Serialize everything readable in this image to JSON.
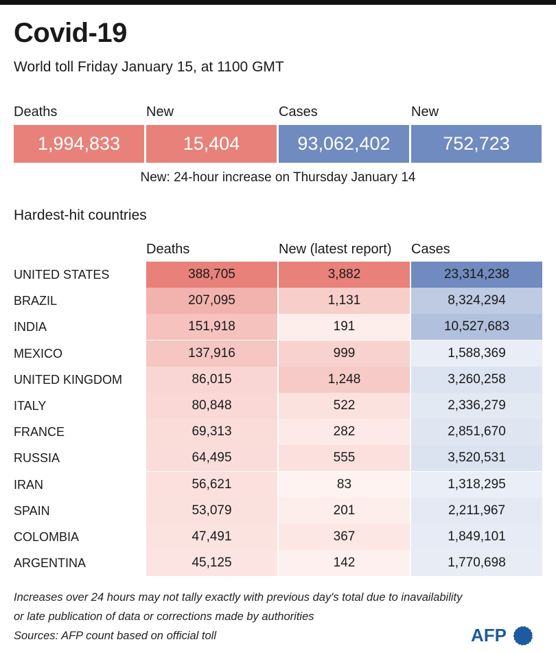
{
  "header": {
    "title": "Covid-19",
    "subtitle": "World toll Friday January 15, at 1100 GMT"
  },
  "summary": {
    "items": [
      {
        "label": "Deaths",
        "value": "1,994,833",
        "color": "#e8817a"
      },
      {
        "label": "New",
        "value": "15,404",
        "color": "#e8817a"
      },
      {
        "label": "Cases",
        "value": "93,062,402",
        "color": "#6f8bbf"
      },
      {
        "label": "New",
        "value": "752,723",
        "color": "#6f8bbf"
      }
    ],
    "note": "New: 24-hour increase on Thursday January 14"
  },
  "section_title": "Hardest-hit countries",
  "colors": {
    "red_max": "#e8817a",
    "red_min": "#fff7f5",
    "blue_max": "#6f8bbf",
    "blue_min": "#f6f8fc"
  },
  "chart_data": {
    "type": "table",
    "columns": [
      "Deaths",
      "New (latest report)",
      "Cases"
    ],
    "rows": [
      {
        "country": "UNITED STATES",
        "deaths": "388,705",
        "new": "3,882",
        "cases": "23,314,238"
      },
      {
        "country": "BRAZIL",
        "deaths": "207,095",
        "new": "1,131",
        "cases": "8,324,294"
      },
      {
        "country": "INDIA",
        "deaths": "151,918",
        "new": "191",
        "cases": "10,527,683"
      },
      {
        "country": "MEXICO",
        "deaths": "137,916",
        "new": "999",
        "cases": "1,588,369"
      },
      {
        "country": "UNITED KINGDOM",
        "deaths": "86,015",
        "new": "1,248",
        "cases": "3,260,258"
      },
      {
        "country": "ITALY",
        "deaths": "80,848",
        "new": "522",
        "cases": "2,336,279"
      },
      {
        "country": "FRANCE",
        "deaths": "69,313",
        "new": "282",
        "cases": "2,851,670"
      },
      {
        "country": "RUSSIA",
        "deaths": "64,495",
        "new": "555",
        "cases": "3,520,531"
      },
      {
        "country": "IRAN",
        "deaths": "56,621",
        "new": "83",
        "cases": "1,318,295"
      },
      {
        "country": "SPAIN",
        "deaths": "53,079",
        "new": "201",
        "cases": "2,211,967"
      },
      {
        "country": "COLOMBIA",
        "deaths": "47,491",
        "new": "367",
        "cases": "1,849,101"
      },
      {
        "country": "ARGENTINA",
        "deaths": "45,125",
        "new": "142",
        "cases": "1,770,698"
      }
    ]
  },
  "footer": {
    "note_line1": "Increases over 24 hours may not tally exactly with previous day's total due to inavailability",
    "note_line2": "or late publication of data or corrections made by authorities",
    "source": "Sources: AFP count based on official toll",
    "logo_text": "AFP"
  }
}
